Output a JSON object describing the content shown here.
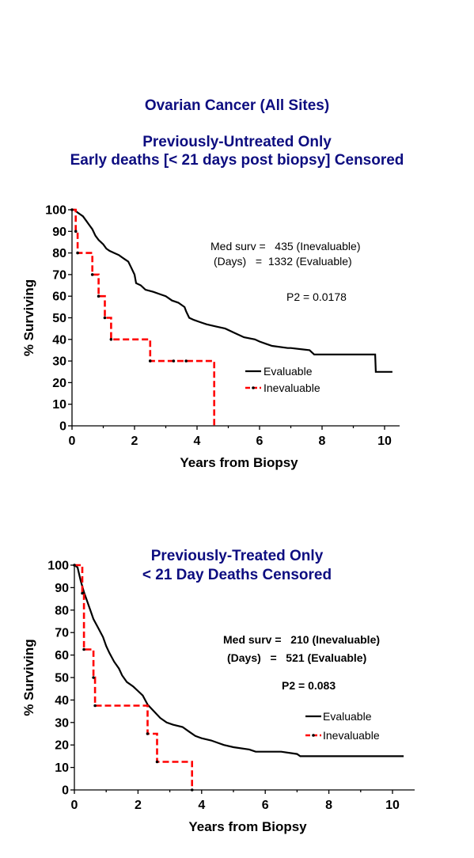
{
  "page": {
    "main_title": "Ovarian Cancer (All Sites)"
  },
  "colors": {
    "title": "#0d0d80",
    "evaluable": "#000000",
    "inevaluable": "#ff0000"
  },
  "chart_data": [
    {
      "type": "line",
      "title_lines": [
        "Previously-Untreated Only",
        "Early deaths [< 21 days post biopsy] Censored"
      ],
      "xlabel": "Years from Biopsy",
      "ylabel": "% Surviving",
      "xlim": [
        0,
        10.7
      ],
      "ylim": [
        0,
        100
      ],
      "xticks": [
        0,
        2,
        4,
        6,
        8,
        10
      ],
      "yticks": [
        0,
        10,
        20,
        30,
        40,
        50,
        60,
        70,
        80,
        90,
        100
      ],
      "legend": {
        "placement": "lower-right"
      },
      "annotations": [
        "Med surv =   435 (Inevaluable)",
        "(Days)   =  1332 (Evaluable)",
        "P2 = 0.0178"
      ],
      "annotation_bold": false,
      "series": [
        {
          "name": "Evaluable",
          "color": "#000000",
          "dashed": false,
          "points": [
            [
              0,
              100
            ],
            [
              0.1,
              100
            ],
            [
              0.15,
              99
            ],
            [
              0.25,
              98
            ],
            [
              0.35,
              97
            ],
            [
              0.45,
              95
            ],
            [
              0.55,
              93
            ],
            [
              0.65,
              91
            ],
            [
              0.75,
              88
            ],
            [
              0.85,
              86
            ],
            [
              1.0,
              84
            ],
            [
              1.1,
              82
            ],
            [
              1.2,
              81
            ],
            [
              1.35,
              80
            ],
            [
              1.5,
              79
            ],
            [
              1.6,
              78
            ],
            [
              1.7,
              77
            ],
            [
              1.8,
              76
            ],
            [
              1.9,
              73
            ],
            [
              2.0,
              70
            ],
            [
              2.05,
              66
            ],
            [
              2.2,
              65
            ],
            [
              2.35,
              63
            ],
            [
              2.6,
              62
            ],
            [
              2.8,
              61
            ],
            [
              3.0,
              60
            ],
            [
              3.2,
              58
            ],
            [
              3.4,
              57
            ],
            [
              3.6,
              55
            ],
            [
              3.65,
              53
            ],
            [
              3.75,
              50
            ],
            [
              3.9,
              49
            ],
            [
              4.1,
              48
            ],
            [
              4.3,
              47
            ],
            [
              4.6,
              46
            ],
            [
              4.9,
              45
            ],
            [
              5.2,
              43
            ],
            [
              5.5,
              41
            ],
            [
              5.85,
              40
            ],
            [
              6.0,
              39
            ],
            [
              6.2,
              38
            ],
            [
              6.4,
              37
            ],
            [
              6.9,
              36
            ],
            [
              7.0,
              36
            ],
            [
              7.6,
              35
            ],
            [
              7.75,
              33
            ],
            [
              9.7,
              33
            ],
            [
              9.72,
              25
            ],
            [
              10.25,
              25
            ]
          ],
          "censor_marks": []
        },
        {
          "name": "Inevaluable",
          "color": "#ff0000",
          "dashed": true,
          "points": [
            [
              0,
              100
            ],
            [
              0.12,
              100
            ],
            [
              0.12,
              90
            ],
            [
              0.18,
              90
            ],
            [
              0.18,
              80
            ],
            [
              0.65,
              80
            ],
            [
              0.65,
              70
            ],
            [
              0.85,
              70
            ],
            [
              0.85,
              60
            ],
            [
              1.05,
              60
            ],
            [
              1.05,
              50
            ],
            [
              1.25,
              50
            ],
            [
              1.25,
              40
            ],
            [
              2.5,
              40
            ],
            [
              2.5,
              30
            ],
            [
              4.55,
              30
            ],
            [
              4.55,
              0
            ]
          ],
          "censor_marks": [
            [
              0,
              100
            ],
            [
              0.12,
              90
            ],
            [
              0.18,
              80
            ],
            [
              0.65,
              70
            ],
            [
              0.85,
              60
            ],
            [
              1.05,
              50
            ],
            [
              1.25,
              40
            ],
            [
              2.5,
              30
            ],
            [
              3.25,
              30
            ],
            [
              3.65,
              30
            ]
          ]
        }
      ]
    },
    {
      "type": "line",
      "title_lines": [
        "Previously-Treated Only",
        "< 21 Day Deaths Censored"
      ],
      "xlabel": "Years from Biopsy",
      "ylabel": "% Surviving",
      "xlim": [
        0,
        10.7
      ],
      "ylim": [
        0,
        100
      ],
      "xticks": [
        0,
        2,
        4,
        6,
        8,
        10
      ],
      "yticks": [
        0,
        10,
        20,
        30,
        40,
        50,
        60,
        70,
        80,
        90,
        100
      ],
      "legend": {
        "placement": "lower-right"
      },
      "annotations": [
        "Med surv =   210 (Inevaluable)",
        "(Days)   =   521 (Evaluable)",
        "P2 = 0.083"
      ],
      "annotation_bold": true,
      "series": [
        {
          "name": "Evaluable",
          "color": "#000000",
          "dashed": false,
          "points": [
            [
              0,
              100
            ],
            [
              0.1,
              99
            ],
            [
              0.15,
              96
            ],
            [
              0.2,
              93
            ],
            [
              0.3,
              88
            ],
            [
              0.4,
              84
            ],
            [
              0.5,
              80
            ],
            [
              0.6,
              76
            ],
            [
              0.75,
              72
            ],
            [
              0.9,
              68
            ],
            [
              1.0,
              64
            ],
            [
              1.1,
              61
            ],
            [
              1.25,
              57
            ],
            [
              1.4,
              54
            ],
            [
              1.5,
              51
            ],
            [
              1.65,
              48
            ],
            [
              1.85,
              46
            ],
            [
              2.0,
              44
            ],
            [
              2.15,
              42
            ],
            [
              2.3,
              38
            ],
            [
              2.5,
              35
            ],
            [
              2.7,
              32
            ],
            [
              2.9,
              30
            ],
            [
              3.1,
              29
            ],
            [
              3.4,
              28
            ],
            [
              3.6,
              26
            ],
            [
              3.8,
              24
            ],
            [
              4.0,
              23
            ],
            [
              4.3,
              22
            ],
            [
              4.5,
              21
            ],
            [
              4.7,
              20
            ],
            [
              5.0,
              19
            ],
            [
              5.5,
              18
            ],
            [
              5.7,
              17
            ],
            [
              6.5,
              17
            ],
            [
              7.0,
              16
            ],
            [
              7.1,
              15
            ],
            [
              10.35,
              15
            ]
          ],
          "censor_marks": []
        },
        {
          "name": "Inevaluable",
          "color": "#ff0000",
          "dashed": true,
          "points": [
            [
              0,
              100
            ],
            [
              0.25,
              100
            ],
            [
              0.25,
              87.5
            ],
            [
              0.3,
              87.5
            ],
            [
              0.3,
              62.5
            ],
            [
              0.6,
              62.5
            ],
            [
              0.6,
              50
            ],
            [
              0.65,
              50
            ],
            [
              0.65,
              37.5
            ],
            [
              2.3,
              37.5
            ],
            [
              2.3,
              25
            ],
            [
              2.6,
              25
            ],
            [
              2.6,
              12.5
            ],
            [
              3.7,
              12.5
            ],
            [
              3.7,
              0
            ]
          ],
          "censor_marks": [
            [
              0,
              100
            ],
            [
              0.25,
              87.5
            ],
            [
              0.3,
              62.5
            ],
            [
              0.6,
              50
            ],
            [
              0.65,
              37.5
            ],
            [
              2.3,
              25
            ],
            [
              2.6,
              12.5
            ],
            [
              3.7,
              0
            ]
          ]
        }
      ]
    }
  ]
}
